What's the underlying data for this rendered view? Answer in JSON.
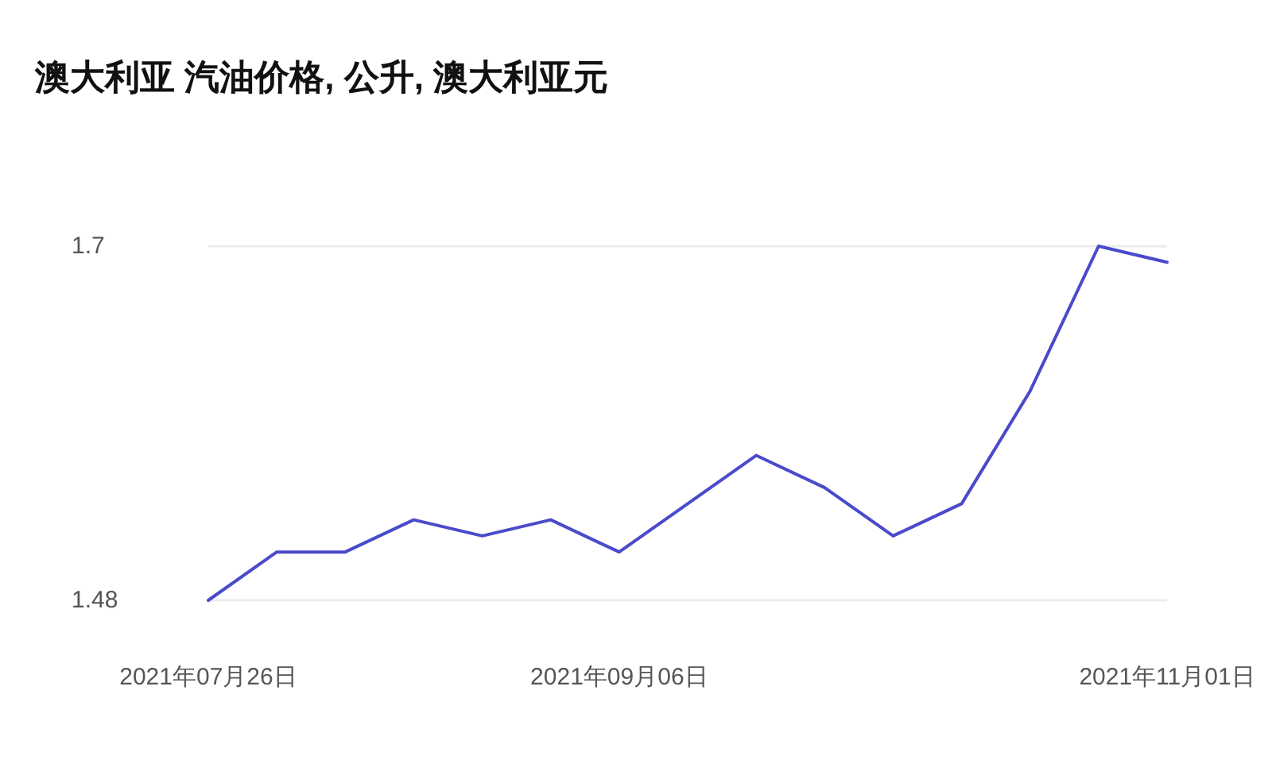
{
  "chart_data": {
    "type": "line",
    "title": "澳大利亚 汽油价格, 公升, 澳大利亚元",
    "x": [
      "2021-07-26",
      "2021-08-02",
      "2021-08-09",
      "2021-08-16",
      "2021-08-23",
      "2021-08-30",
      "2021-09-06",
      "2021-09-13",
      "2021-09-20",
      "2021-09-27",
      "2021-10-04",
      "2021-10-11",
      "2021-10-18",
      "2021-10-25",
      "2021-11-01"
    ],
    "values": [
      1.48,
      1.51,
      1.51,
      1.53,
      1.52,
      1.53,
      1.51,
      1.54,
      1.57,
      1.55,
      1.52,
      1.54,
      1.61,
      1.7,
      1.69
    ],
    "color": "#4a4acb",
    "xlim": [
      "2021-07-26",
      "2021-11-01"
    ],
    "xticks": [
      {
        "value": "2021-07-26",
        "label": "2021年07月26日"
      },
      {
        "value": "2021-09-06",
        "label": "2021年09月06日"
      },
      {
        "value": "2021-11-01",
        "label": "2021年11月01日"
      }
    ],
    "ylim": [
      1.48,
      1.7
    ],
    "yticks": [
      1.48,
      1.7
    ],
    "grid": "y"
  }
}
